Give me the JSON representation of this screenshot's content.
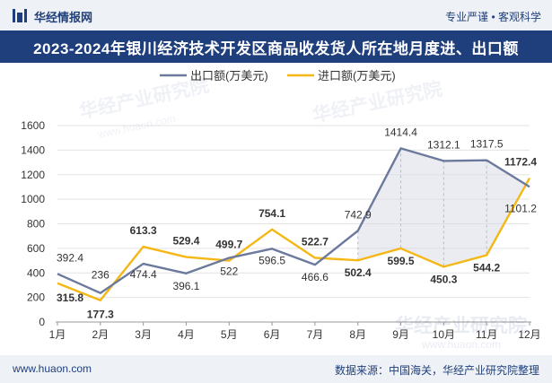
{
  "header": {
    "brand": "华经情报网",
    "slogan": "专业严谨 • 客观科学"
  },
  "footer": {
    "website": "www.huaon.com",
    "source": "数据来源：中国海关，华经产业研究院整理"
  },
  "colors": {
    "export": "#6b7a9c",
    "import": "#f5b716",
    "title_bg": "#1f3e7c",
    "band_fill": "#d9dde6"
  },
  "chart_data": {
    "type": "line",
    "title": "2023-2024年银川经济技术开发区商品收发货人所在地月度进、出口额",
    "categories": [
      "1月",
      "2月",
      "3月",
      "4月",
      "5月",
      "6月",
      "7月",
      "8月",
      "9月",
      "10月",
      "11月",
      "12月"
    ],
    "series": [
      {
        "name": "出口额(万美元)",
        "values": [
          392.4,
          236,
          474.4,
          396.1,
          522,
          596.5,
          466.6,
          742.9,
          1414.4,
          1312.1,
          1317.5,
          1101.2
        ]
      },
      {
        "name": "进口额(万美元)",
        "values": [
          315.8,
          177.3,
          613.3,
          529.4,
          499.7,
          754.1,
          522.7,
          502.4,
          599.5,
          450.3,
          544.2,
          1172.4
        ]
      }
    ],
    "export_labels": [
      "392.4",
      "236",
      "474.4",
      "396.1",
      "522",
      "596.5",
      "466.6",
      "742.9",
      "1414.4",
      "1312.1",
      "1317.5",
      "1101.2"
    ],
    "import_labels": [
      "315.8",
      "177.3",
      "613.3",
      "529.4",
      "499.7",
      "754.1",
      "522.7",
      "502.4",
      "599.5",
      "450.3",
      "544.2",
      "1172.4"
    ],
    "ylim": [
      0,
      1600
    ],
    "yticks": [
      "0",
      "200",
      "400",
      "600",
      "800",
      "1000",
      "1200",
      "1400",
      "1600"
    ],
    "grid": true,
    "legend": "top-center",
    "watermark": "华经产业研究院",
    "watermark_url": "www.huaon.com"
  }
}
